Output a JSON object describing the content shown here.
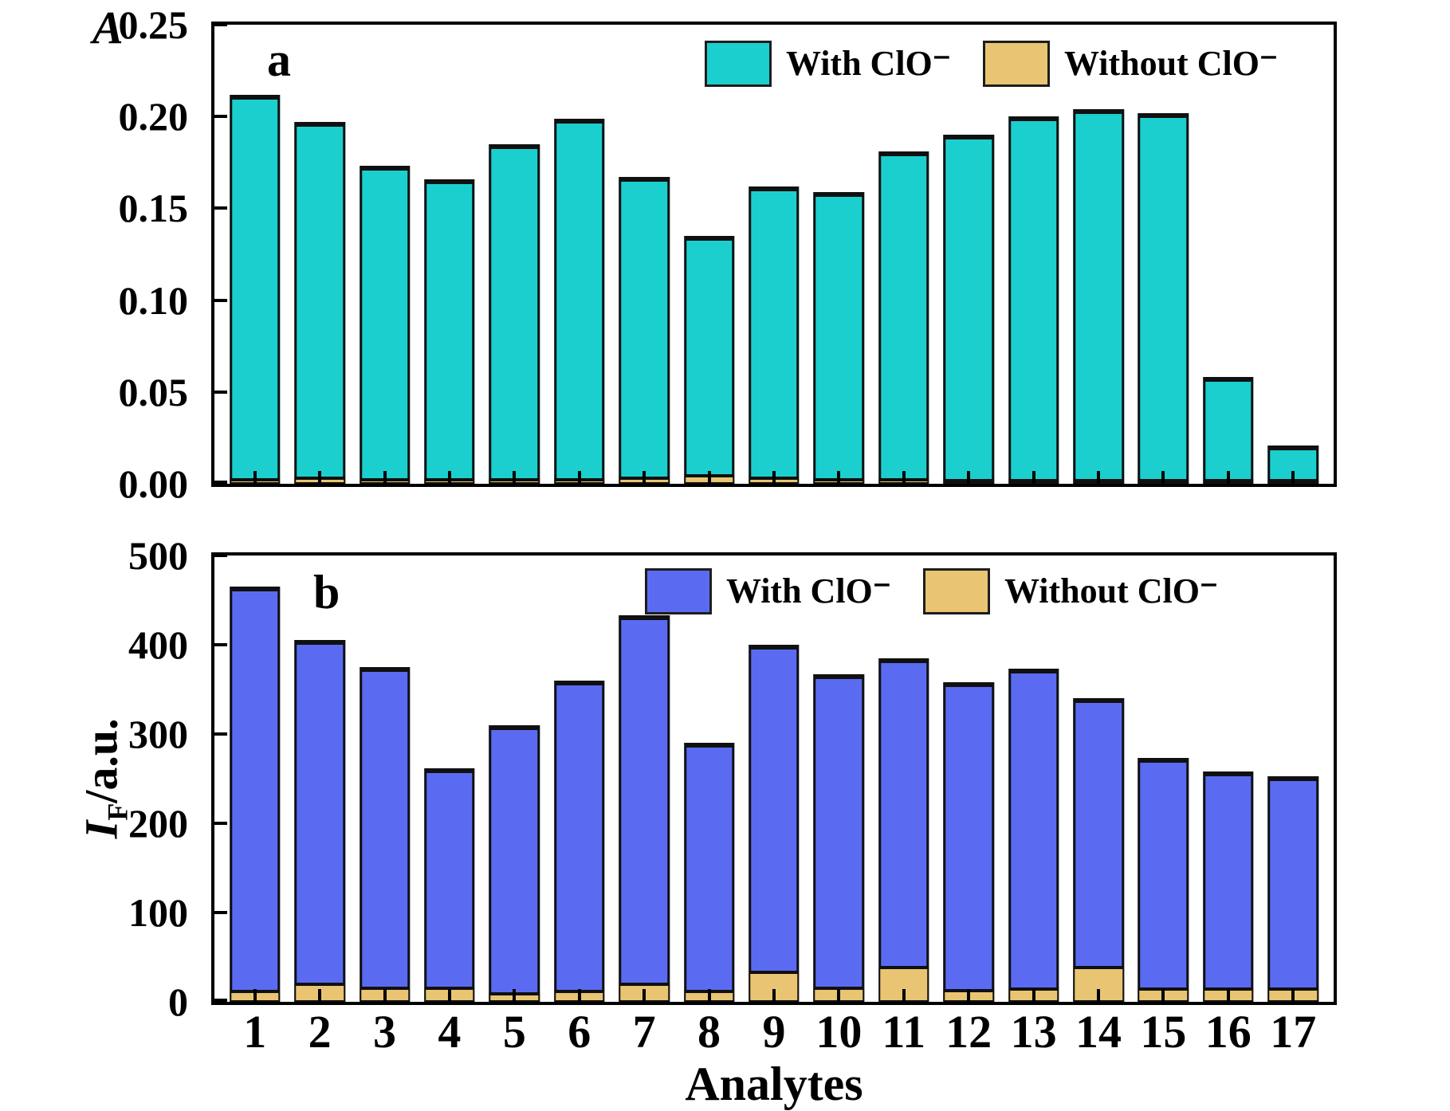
{
  "figure": {
    "x_axis_label": "Analytes"
  },
  "chart_data": [
    {
      "type": "bar",
      "panel_label": "a",
      "title": "",
      "xlabel": "Analytes",
      "ylabel": "A",
      "ylim": [
        0,
        0.25
      ],
      "ytick_labels": [
        "0.00",
        "0.05",
        "0.10",
        "0.15",
        "0.20",
        "0.25"
      ],
      "grid": false,
      "legend_position": "top-right",
      "categories": [
        "1",
        "2",
        "3",
        "4",
        "5",
        "6",
        "7",
        "8",
        "9",
        "10",
        "11",
        "12",
        "13",
        "14",
        "15",
        "16",
        "17"
      ],
      "series": [
        {
          "name": "With ClO⁻",
          "color": "#1ccfcf",
          "values": [
            0.212,
            0.197,
            0.173,
            0.166,
            0.185,
            0.199,
            0.167,
            0.135,
            0.162,
            0.159,
            0.181,
            0.19,
            0.2,
            0.204,
            0.202,
            0.058,
            0.021
          ]
        },
        {
          "name": "Without ClO⁻",
          "color": "#e9c472",
          "values": [
            0.003,
            0.004,
            0.003,
            0.003,
            0.003,
            0.003,
            0.004,
            0.005,
            0.004,
            0.003,
            0.003,
            0.002,
            0.001,
            0.001,
            0.001,
            0.001,
            0.001
          ]
        }
      ]
    },
    {
      "type": "bar",
      "panel_label": "b",
      "title": "",
      "xlabel": "Analytes",
      "ylabel": "I_F/a.u.",
      "ylabel_parts": {
        "italic": "I",
        "sub": "F",
        "rest": "/a.u."
      },
      "ylim": [
        0,
        500
      ],
      "ytick_labels": [
        "0",
        "100",
        "200",
        "300",
        "400",
        "500"
      ],
      "grid": false,
      "legend_position": "top-right",
      "categories": [
        "1",
        "2",
        "3",
        "4",
        "5",
        "6",
        "7",
        "8",
        "9",
        "10",
        "11",
        "12",
        "13",
        "14",
        "15",
        "16",
        "17"
      ],
      "series": [
        {
          "name": "With ClO⁻",
          "color": "#5a6bf2",
          "values": [
            465,
            405,
            375,
            262,
            310,
            360,
            433,
            290,
            400,
            367,
            385,
            358,
            373,
            340,
            273,
            258,
            253
          ]
        },
        {
          "name": "Without ClO⁻",
          "color": "#e9c472",
          "values": [
            13,
            21,
            17,
            17,
            11,
            13,
            21,
            13,
            35,
            17,
            40,
            14,
            16,
            40,
            16,
            16,
            16
          ]
        }
      ]
    }
  ]
}
